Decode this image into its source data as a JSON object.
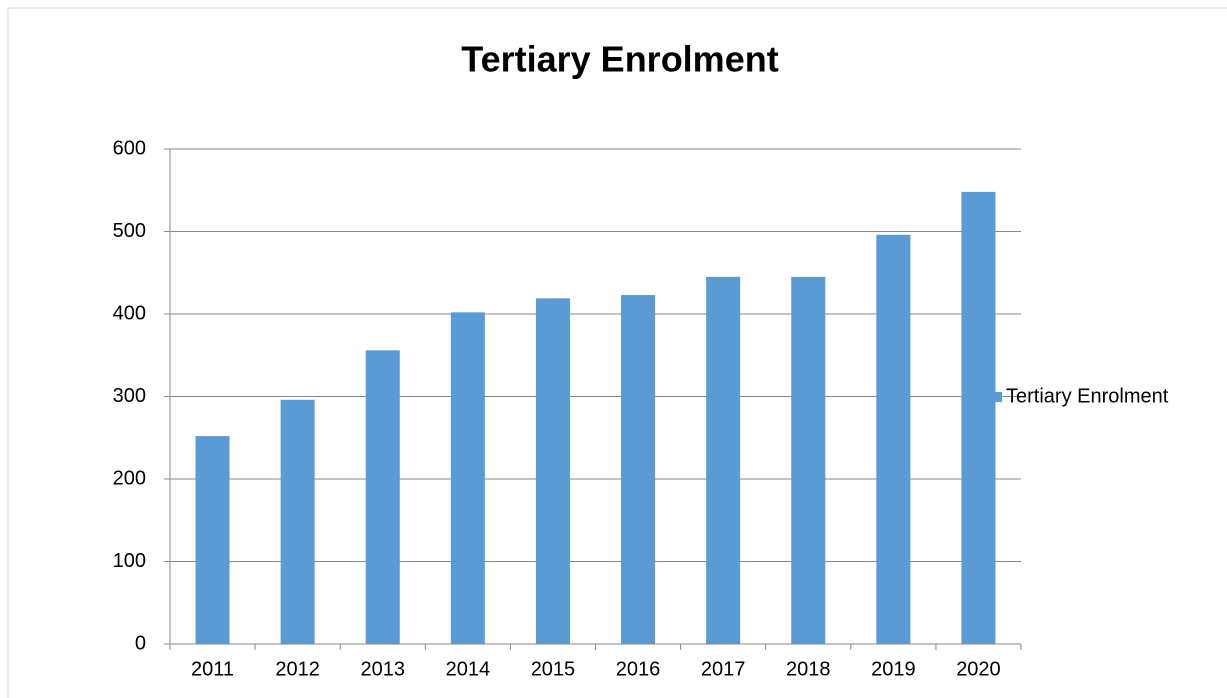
{
  "chart_data": {
    "type": "bar",
    "title": "Tertiary Enrolment",
    "categories": [
      "2011",
      "2012",
      "2013",
      "2014",
      "2015",
      "2016",
      "2017",
      "2018",
      "2019",
      "2020"
    ],
    "series": [
      {
        "name": "Tertiary Enrolment",
        "color": "#5b9bd5",
        "values": [
          252,
          296,
          356,
          402,
          419,
          423,
          445,
          445,
          496,
          548
        ]
      }
    ],
    "ylim": [
      0,
      600
    ],
    "yticks": [
      0,
      100,
      200,
      300,
      400,
      500,
      600
    ],
    "grid": true,
    "legend": "right"
  }
}
